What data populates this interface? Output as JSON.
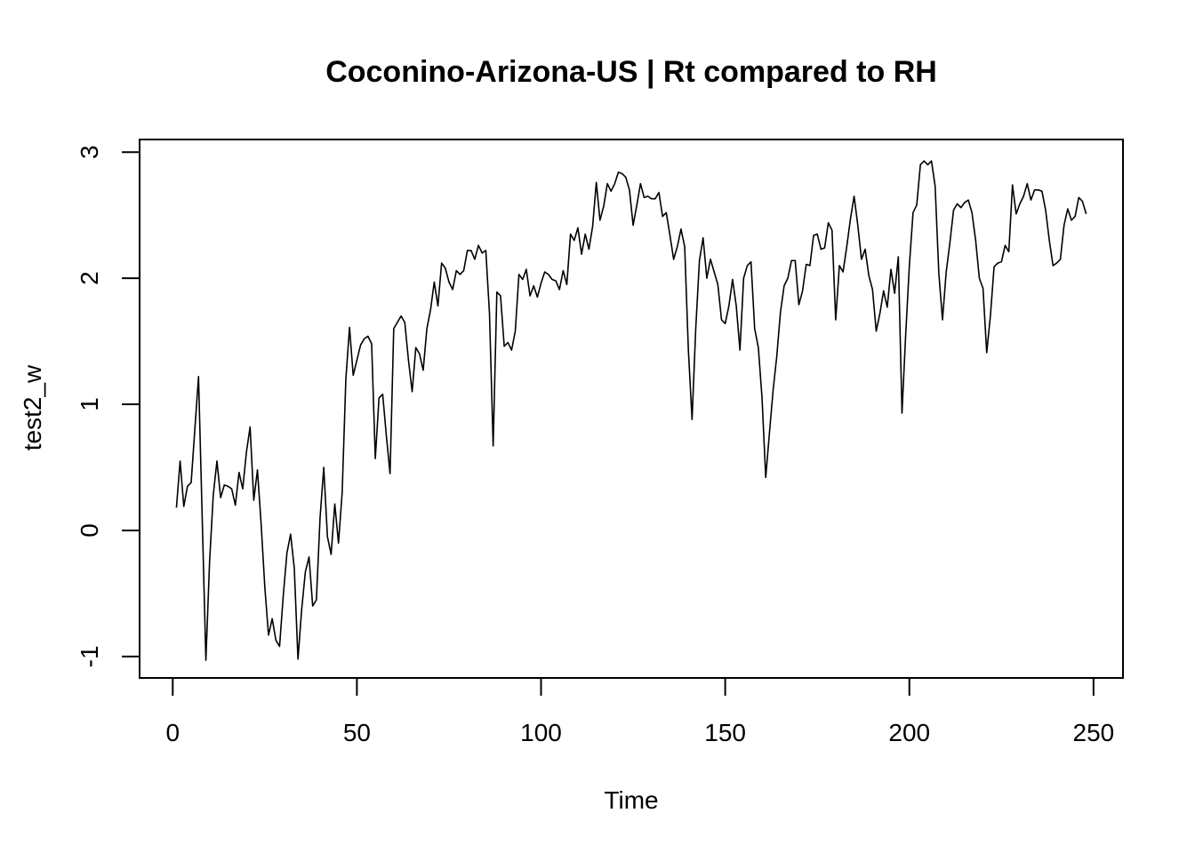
{
  "chart_data": {
    "type": "line",
    "title": "Coconino-Arizona-US | Rt compared to RH",
    "xlabel": "Time",
    "ylabel": "test2_w",
    "xlim": [
      -9,
      258
    ],
    "ylim": [
      -1.17,
      3.1
    ],
    "xticks": [
      0,
      50,
      100,
      150,
      200,
      250
    ],
    "yticks": [
      -1,
      0,
      1,
      2,
      3
    ],
    "grid": false,
    "legend": "none",
    "line_color": "#000000",
    "series": [
      {
        "x": [
          1,
          2,
          3,
          4,
          5,
          6,
          7,
          8,
          9,
          10,
          11,
          12,
          13,
          14,
          15,
          16,
          17,
          18,
          19,
          20,
          21,
          22,
          23,
          24,
          25,
          26,
          27,
          28,
          29,
          30,
          31,
          32,
          33,
          34,
          35,
          36,
          37,
          38,
          39,
          40,
          41,
          42,
          43,
          44,
          45,
          46,
          47,
          48,
          49,
          50,
          51,
          52,
          53,
          54,
          55,
          56,
          57,
          58,
          59,
          60,
          61,
          62,
          63,
          64,
          65,
          66,
          67,
          68,
          69,
          70,
          71,
          72,
          73,
          74,
          75,
          76,
          77,
          78,
          79,
          80,
          81,
          82,
          83,
          84,
          85,
          86,
          87,
          88,
          89,
          90,
          91,
          92,
          93,
          94,
          95,
          96,
          97,
          98,
          99,
          100,
          101,
          102,
          103,
          104,
          105,
          106,
          107,
          108,
          109,
          110,
          111,
          112,
          113,
          114,
          115,
          116,
          117,
          118,
          119,
          120,
          121,
          122,
          123,
          124,
          125,
          126,
          127,
          128,
          129,
          130,
          131,
          132,
          133,
          134,
          135,
          136,
          137,
          138,
          139,
          140,
          141,
          142,
          143,
          144,
          145,
          146,
          147,
          148,
          149,
          150,
          151,
          152,
          153,
          154,
          155,
          156,
          157,
          158,
          159,
          160,
          161,
          162,
          163,
          164,
          165,
          166,
          167,
          168,
          169,
          170,
          171,
          172,
          173,
          174,
          175,
          176,
          177,
          178,
          179,
          180,
          181,
          182,
          183,
          184,
          185,
          186,
          187,
          188,
          189,
          190,
          191,
          192,
          193,
          194,
          195,
          196,
          197,
          198,
          199,
          200,
          201,
          202,
          203,
          204,
          205,
          206,
          207,
          208,
          209,
          210,
          211,
          212,
          213,
          214,
          215,
          216,
          217,
          218,
          219,
          220,
          221,
          222,
          223,
          224,
          225,
          226,
          227,
          228,
          229,
          230,
          231,
          232,
          233,
          234,
          235,
          236,
          237,
          238,
          239,
          240,
          241,
          242,
          243,
          244,
          245,
          246,
          247,
          248
        ],
        "y": [
          0.18,
          0.55,
          0.19,
          0.35,
          0.38,
          0.8,
          1.22,
          0.1,
          -1.03,
          -0.25,
          0.28,
          0.55,
          0.26,
          0.36,
          0.35,
          0.33,
          0.2,
          0.46,
          0.33,
          0.62,
          0.82,
          0.24,
          0.48,
          0.05,
          -0.45,
          -0.83,
          -0.7,
          -0.87,
          -0.92,
          -0.52,
          -0.18,
          -0.03,
          -0.3,
          -1.02,
          -0.63,
          -0.33,
          -0.21,
          -0.6,
          -0.55,
          0.1,
          0.5,
          -0.05,
          -0.19,
          0.21,
          -0.1,
          0.3,
          1.2,
          1.61,
          1.23,
          1.35,
          1.47,
          1.52,
          1.54,
          1.48,
          0.57,
          1.05,
          1.08,
          0.75,
          0.45,
          1.6,
          1.65,
          1.7,
          1.65,
          1.35,
          1.1,
          1.45,
          1.4,
          1.27,
          1.6,
          1.75,
          1.97,
          1.78,
          2.12,
          2.08,
          1.97,
          1.91,
          2.06,
          2.03,
          2.06,
          2.22,
          2.22,
          2.15,
          2.26,
          2.2,
          2.22,
          1.72,
          0.67,
          1.89,
          1.86,
          1.46,
          1.49,
          1.43,
          1.58,
          2.03,
          1.99,
          2.07,
          1.86,
          1.94,
          1.85,
          1.96,
          2.05,
          2.03,
          1.99,
          1.98,
          1.91,
          2.06,
          1.95,
          2.35,
          2.3,
          2.4,
          2.19,
          2.35,
          2.23,
          2.41,
          2.76,
          2.46,
          2.57,
          2.75,
          2.69,
          2.75,
          2.84,
          2.83,
          2.8,
          2.7,
          2.42,
          2.58,
          2.75,
          2.64,
          2.65,
          2.63,
          2.63,
          2.68,
          2.49,
          2.52,
          2.34,
          2.15,
          2.25,
          2.39,
          2.25,
          1.43,
          0.88,
          1.6,
          2.14,
          2.32,
          2.0,
          2.15,
          2.05,
          1.95,
          1.67,
          1.64,
          1.78,
          1.99,
          1.78,
          1.43,
          2.0,
          2.1,
          2.13,
          1.6,
          1.45,
          1.05,
          0.42,
          0.77,
          1.11,
          1.38,
          1.73,
          1.94,
          2.0,
          2.14,
          2.14,
          1.79,
          1.9,
          2.11,
          2.1,
          2.34,
          2.35,
          2.23,
          2.24,
          2.44,
          2.38,
          1.67,
          2.1,
          2.05,
          2.25,
          2.47,
          2.65,
          2.42,
          2.15,
          2.23,
          2.02,
          1.91,
          1.58,
          1.72,
          1.9,
          1.77,
          2.07,
          1.88,
          2.17,
          0.93,
          1.55,
          2.1,
          2.52,
          2.58,
          2.9,
          2.93,
          2.9,
          2.93,
          2.73,
          2.04,
          1.67,
          2.05,
          2.28,
          2.54,
          2.59,
          2.56,
          2.6,
          2.62,
          2.52,
          2.3,
          2.0,
          1.92,
          1.41,
          1.7,
          2.09,
          2.12,
          2.13,
          2.26,
          2.21,
          2.74,
          2.51,
          2.59,
          2.65,
          2.75,
          2.62,
          2.7,
          2.7,
          2.69,
          2.54,
          2.3,
          2.1,
          2.12,
          2.15,
          2.42,
          2.55,
          2.46,
          2.49,
          2.64,
          2.61,
          2.51
        ]
      }
    ]
  }
}
